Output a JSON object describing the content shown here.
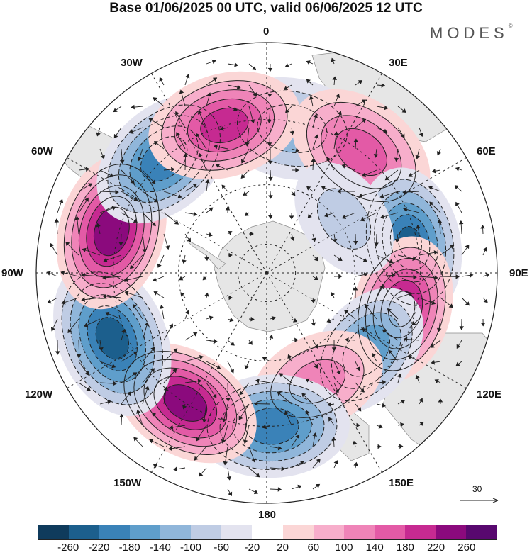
{
  "title": "Base 01/06/2025 00 UTC, valid 06/06/2025 12 UTC",
  "brand": "MODES",
  "brand_mark": "©",
  "longitude_labels": {
    "lon_0": "0",
    "lon_30e": "30E",
    "lon_60e": "60E",
    "lon_90e": "90E",
    "lon_120e": "120E",
    "lon_150e": "150E",
    "lon_180": "180",
    "lon_150w": "150W",
    "lon_120w": "120W",
    "lon_90w": "90W",
    "lon_60w": "60W",
    "lon_30w": "30W"
  },
  "reference_vector": {
    "value": "30"
  },
  "colorbar": {
    "colors": [
      "#0f3b5c",
      "#1c5f8d",
      "#3a82b8",
      "#5f9ecb",
      "#90b6da",
      "#bfcce4",
      "#e3e3ef",
      "#ffffff",
      "#fbd6d6",
      "#f7aecb",
      "#ef84b8",
      "#e35aa6",
      "#c62a91",
      "#8b0a7d",
      "#58086f"
    ],
    "tick_labels": [
      "-260",
      "-220",
      "-180",
      "-140",
      "-100",
      "-60",
      "-20",
      "20",
      "60",
      "100",
      "140",
      "180",
      "220",
      "260"
    ]
  },
  "anomaly_centers": [
    {
      "lon": 10,
      "lat": -42,
      "value": -120
    },
    {
      "lon": 38,
      "lat": -40,
      "value": 160
    },
    {
      "lon": 78,
      "lat": -42,
      "value": -220
    },
    {
      "lon": 105,
      "lat": -44,
      "value": 230
    },
    {
      "lon": 128,
      "lat": -48,
      "value": -170
    },
    {
      "lon": 155,
      "lat": -50,
      "value": 110
    },
    {
      "lon": 178,
      "lat": -40,
      "value": -210
    },
    {
      "lon": -148,
      "lat": -40,
      "value": 250
    },
    {
      "lon": -113,
      "lat": -36,
      "value": -240
    },
    {
      "lon": -75,
      "lat": -38,
      "value": 255
    },
    {
      "lon": -42,
      "lat": -40,
      "value": -210
    },
    {
      "lon": -16,
      "lat": -40,
      "value": 200
    },
    {
      "lon": 55,
      "lat": -58,
      "value": -60
    }
  ]
}
